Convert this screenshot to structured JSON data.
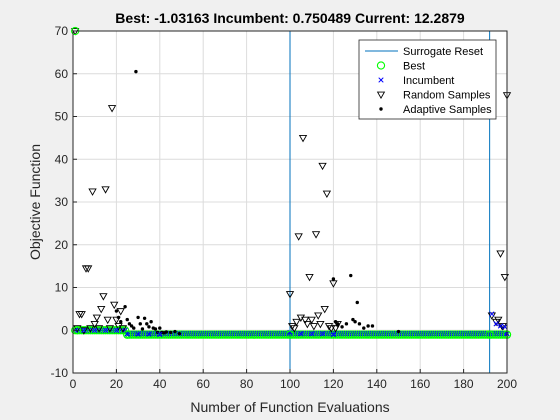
{
  "chart_data": {
    "type": "scatter",
    "title": "Best: -1.03163 Incumbent: 0.750489 Current: 12.2879",
    "xlabel": "Number of Function Evaluations",
    "ylabel": "Objective Function",
    "xlim": [
      0,
      200
    ],
    "ylim": [
      -10,
      70
    ],
    "xticks": [
      0,
      20,
      40,
      60,
      80,
      100,
      120,
      140,
      160,
      180,
      200
    ],
    "yticks": [
      -10,
      0,
      10,
      20,
      30,
      40,
      50,
      60,
      70
    ],
    "grid": true,
    "legend_position": "top-right",
    "legend": [
      {
        "label": "Surrogate Reset",
        "marker": "line",
        "color": "#0072bd"
      },
      {
        "label": "Best",
        "marker": "circle",
        "color": "#00ff00"
      },
      {
        "label": "Incumbent",
        "marker": "x",
        "color": "#0000ff"
      },
      {
        "label": "Random Samples",
        "marker": "triangle-down",
        "color": "#000000"
      },
      {
        "label": "Adaptive Samples",
        "marker": "dot",
        "color": "#000000"
      }
    ],
    "surrogate_resets": [
      100,
      192
    ],
    "series": [
      {
        "name": "Random Samples",
        "points": [
          [
            1,
            70
          ],
          [
            2,
            0.5
          ],
          [
            3,
            3.8
          ],
          [
            4,
            3.8
          ],
          [
            5,
            0
          ],
          [
            6,
            14.5
          ],
          [
            7,
            14.5
          ],
          [
            8,
            0.5
          ],
          [
            9,
            32.5
          ],
          [
            10,
            1.5
          ],
          [
            11,
            3
          ],
          [
            12,
            0.5
          ],
          [
            13,
            5
          ],
          [
            14,
            8
          ],
          [
            15,
            33
          ],
          [
            16,
            2.5
          ],
          [
            17,
            0.5
          ],
          [
            18,
            52
          ],
          [
            19,
            6
          ],
          [
            20,
            2.5
          ],
          [
            21,
            1
          ],
          [
            22,
            4.5
          ],
          [
            23,
            0.5
          ],
          [
            100,
            8.5
          ],
          [
            101,
            1
          ],
          [
            102,
            0.5
          ],
          [
            103,
            2
          ],
          [
            104,
            22
          ],
          [
            105,
            3
          ],
          [
            106,
            45
          ],
          [
            107,
            2.5
          ],
          [
            108,
            1.5
          ],
          [
            109,
            12.5
          ],
          [
            110,
            2.5
          ],
          [
            111,
            1
          ],
          [
            112,
            22.5
          ],
          [
            113,
            3.5
          ],
          [
            114,
            1.5
          ],
          [
            115,
            38.5
          ],
          [
            116,
            5
          ],
          [
            117,
            32
          ],
          [
            118,
            1
          ],
          [
            119,
            0.5
          ],
          [
            120,
            11
          ],
          [
            121,
            0.5
          ],
          [
            122,
            1.5
          ],
          [
            193,
            3.5
          ],
          [
            195,
            2
          ],
          [
            196,
            2.5
          ],
          [
            197,
            18
          ],
          [
            198,
            1
          ],
          [
            199,
            12.5
          ],
          [
            200,
            55
          ]
        ]
      },
      {
        "name": "Adaptive Samples",
        "points": [
          [
            20,
            4.5
          ],
          [
            21,
            3
          ],
          [
            22,
            2
          ],
          [
            24,
            5.5
          ],
          [
            25,
            2.5
          ],
          [
            26,
            1.5
          ],
          [
            27,
            1
          ],
          [
            28,
            0.5
          ],
          [
            29,
            60.5
          ],
          [
            30,
            3
          ],
          [
            31,
            1.5
          ],
          [
            32,
            0.3
          ],
          [
            33,
            2.8
          ],
          [
            34,
            1.5
          ],
          [
            35,
            0.8
          ],
          [
            36,
            2
          ],
          [
            37,
            0.5
          ],
          [
            38,
            0.3
          ],
          [
            39,
            -0.5
          ],
          [
            40,
            0.5
          ],
          [
            41,
            -0.5
          ],
          [
            42,
            -0.6
          ],
          [
            43,
            -0.4
          ],
          [
            45,
            -0.5
          ],
          [
            47,
            -0.3
          ],
          [
            49,
            -0.8
          ],
          [
            120,
            12
          ],
          [
            121,
            2
          ],
          [
            122,
            1.5
          ],
          [
            124,
            0.8
          ],
          [
            126,
            1.5
          ],
          [
            128,
            12.8
          ],
          [
            129,
            2.5
          ],
          [
            130,
            2
          ],
          [
            131,
            6.5
          ],
          [
            132,
            1.5
          ],
          [
            134,
            0.5
          ],
          [
            136,
            1
          ],
          [
            138,
            1
          ],
          [
            150,
            -0.3
          ],
          [
            197,
            1
          ],
          [
            198,
            0.5
          ]
        ]
      },
      {
        "name": "Incumbent",
        "points": [
          [
            1,
            0
          ],
          [
            5,
            0
          ],
          [
            10,
            0
          ],
          [
            15,
            0
          ],
          [
            20,
            0
          ],
          [
            25,
            -0.9
          ],
          [
            30,
            -0.9
          ],
          [
            35,
            -0.9
          ],
          [
            40,
            -1
          ],
          [
            100,
            -0.5
          ],
          [
            105,
            -0.8
          ],
          [
            110,
            -0.8
          ],
          [
            115,
            -0.8
          ],
          [
            120,
            -1
          ],
          [
            193,
            3.8
          ],
          [
            195,
            1.5
          ],
          [
            197,
            1
          ],
          [
            199,
            0.8
          ]
        ]
      },
      {
        "name": "Best",
        "points": [
          [
            1,
            70
          ],
          [
            2,
            0
          ],
          [
            25,
            -1.03
          ],
          [
            100,
            -1.03
          ],
          [
            192,
            -1.03
          ],
          [
            200,
            -1.03
          ]
        ]
      }
    ]
  }
}
